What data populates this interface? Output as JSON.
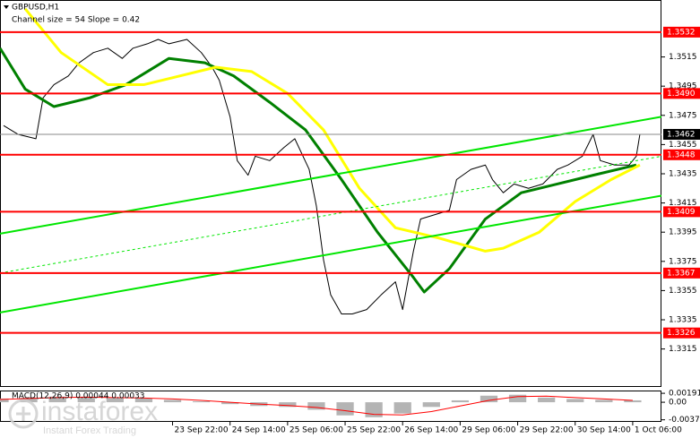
{
  "chart_data": [
    {
      "type": "line",
      "title": "GBPUSD,H1",
      "subtitle": "Channel size = 54 Slope = 0.42",
      "xlim": [
        0,
        184
      ],
      "xticks": [
        {
          "value": 48,
          "label": "23 Sep 22:00"
        },
        {
          "value": 64,
          "label": "24 Sep 14:00"
        },
        {
          "value": 80,
          "label": "25 Sep 06:00"
        },
        {
          "value": 96,
          "label": "25 Sep 22:00"
        },
        {
          "value": 112,
          "label": "26 Sep 14:00"
        },
        {
          "value": 128,
          "label": "29 Sep 06:00"
        },
        {
          "value": 144,
          "label": "29 Sep 22:00"
        },
        {
          "value": 160,
          "label": "30 Sep 14:00"
        },
        {
          "value": 176,
          "label": "1 Oct 06:00"
        }
      ],
      "ylim": [
        1.3289,
        1.3554
      ],
      "yticks": [
        1.3515,
        1.3495,
        1.3475,
        1.3455,
        1.3435,
        1.3415,
        1.3395,
        1.3375,
        1.3355,
        1.3335,
        1.3315
      ],
      "levels": [
        1.3532,
        {
          "value": 1.349,
          "label": "1.3490"
        },
        1.3448,
        1.3409,
        1.3367,
        1.3326
      ],
      "level_color": "#ff0000",
      "last_price": 1.3462,
      "series": [
        {
          "color": "#000000",
          "line_width": 1,
          "x": [
            1,
            5,
            10,
            12,
            15,
            19,
            22,
            26,
            30,
            34,
            37,
            41,
            44,
            47,
            52,
            56,
            59,
            61,
            64,
            66,
            69,
            71,
            75,
            79,
            82,
            86,
            88,
            90,
            92,
            95,
            98,
            102,
            106,
            110,
            112,
            115,
            117,
            121,
            125,
            127,
            131,
            135,
            137,
            140,
            143,
            147,
            151,
            155,
            158,
            162,
            165,
            167,
            171,
            175,
            177,
            178
          ],
          "values": [
            1.3468,
            1.3462,
            1.3459,
            1.3487,
            1.3496,
            1.3502,
            1.3511,
            1.3518,
            1.3521,
            1.3514,
            1.3521,
            1.3524,
            1.3527,
            1.3524,
            1.3527,
            1.3518,
            1.3508,
            1.3499,
            1.3474,
            1.3444,
            1.3434,
            1.3447,
            1.3444,
            1.3453,
            1.3459,
            1.3438,
            1.3413,
            1.3376,
            1.3352,
            1.3339,
            1.3339,
            1.3342,
            1.3352,
            1.3361,
            1.3342,
            1.3382,
            1.3404,
            1.3407,
            1.341,
            1.3431,
            1.3438,
            1.3441,
            1.3431,
            1.3422,
            1.3428,
            1.3425,
            1.3428,
            1.3438,
            1.3441,
            1.3447,
            1.3462,
            1.3444,
            1.3441,
            1.3441,
            1.3447,
            1.3462
          ]
        },
        {
          "color": "#008000",
          "line_width": 3,
          "x": [
            0,
            7,
            15,
            25,
            35,
            47,
            57,
            65,
            75,
            85,
            95,
            105,
            115,
            118,
            125,
            135,
            145,
            155,
            165,
            177
          ],
          "values": [
            1.3521,
            1.3493,
            1.3481,
            1.3487,
            1.3496,
            1.3514,
            1.3511,
            1.3502,
            1.3484,
            1.3465,
            1.3431,
            1.3395,
            1.3364,
            1.3354,
            1.337,
            1.3404,
            1.3422,
            1.3428,
            1.3434,
            1.3441
          ]
        },
        {
          "color": "#ffff00",
          "line_width": 3,
          "x": [
            7,
            17,
            30,
            40,
            50,
            60,
            70,
            80,
            90,
            100,
            110,
            122,
            135,
            140,
            150,
            160,
            170,
            178
          ],
          "values": [
            1.3548,
            1.3518,
            1.3496,
            1.3496,
            1.3502,
            1.3508,
            1.3505,
            1.349,
            1.3465,
            1.3425,
            1.3398,
            1.3391,
            1.3382,
            1.3384,
            1.3395,
            1.3416,
            1.3431,
            1.3441
          ]
        },
        {
          "color": "#00e600",
          "line_width": 2,
          "x": [
            0,
            184
          ],
          "values": [
            1.3394,
            1.3474
          ]
        },
        {
          "color": "#00e600",
          "line_width": 1,
          "dashed": true,
          "x": [
            0,
            184
          ],
          "values": [
            1.3367,
            1.3447
          ]
        },
        {
          "color": "#00e600",
          "line_width": 2,
          "x": [
            0,
            184
          ],
          "values": [
            1.334,
            1.342
          ]
        }
      ]
    },
    {
      "type": "macd",
      "title": "MACD(12,26,9) 0.00044 0.00033",
      "ylim": [
        -0.004,
        0.0025
      ],
      "yticks": [
        0.00191,
        {
          "value": 0,
          "label": "0.00"
        },
        -0.00375
      ],
      "x": [
        0,
        8,
        16,
        24,
        32,
        40,
        48,
        56,
        64,
        72,
        80,
        88,
        96,
        104,
        112,
        120,
        128,
        136,
        144,
        152,
        160,
        168,
        176
      ],
      "series": [
        {
          "style": "bar",
          "color": "#b4b4b4",
          "values": [
            0.0008,
            0.001,
            0.0012,
            0.0011,
            0.0009,
            0.0008,
            0.0005,
            0.0002,
            -0.0004,
            -0.0008,
            -0.001,
            -0.0016,
            -0.0028,
            -0.0032,
            -0.0024,
            -0.001,
            0.0004,
            0.0014,
            0.0016,
            0.001,
            0.0007,
            0.0005,
            0.0004
          ]
        },
        {
          "style": "line",
          "color": "#ff0000",
          "values": [
            0.0006,
            0.0008,
            0.001,
            0.0011,
            0.001,
            0.0009,
            0.0007,
            0.0004,
            0,
            -0.0004,
            -0.0007,
            -0.0011,
            -0.0018,
            -0.0026,
            -0.0027,
            -0.002,
            -0.0008,
            0.0004,
            0.0012,
            0.0013,
            0.001,
            0.0007,
            0.0004
          ]
        }
      ]
    }
  ],
  "watermark": {
    "brand": "instaforex",
    "tagline": "Instant Forex Trading"
  }
}
